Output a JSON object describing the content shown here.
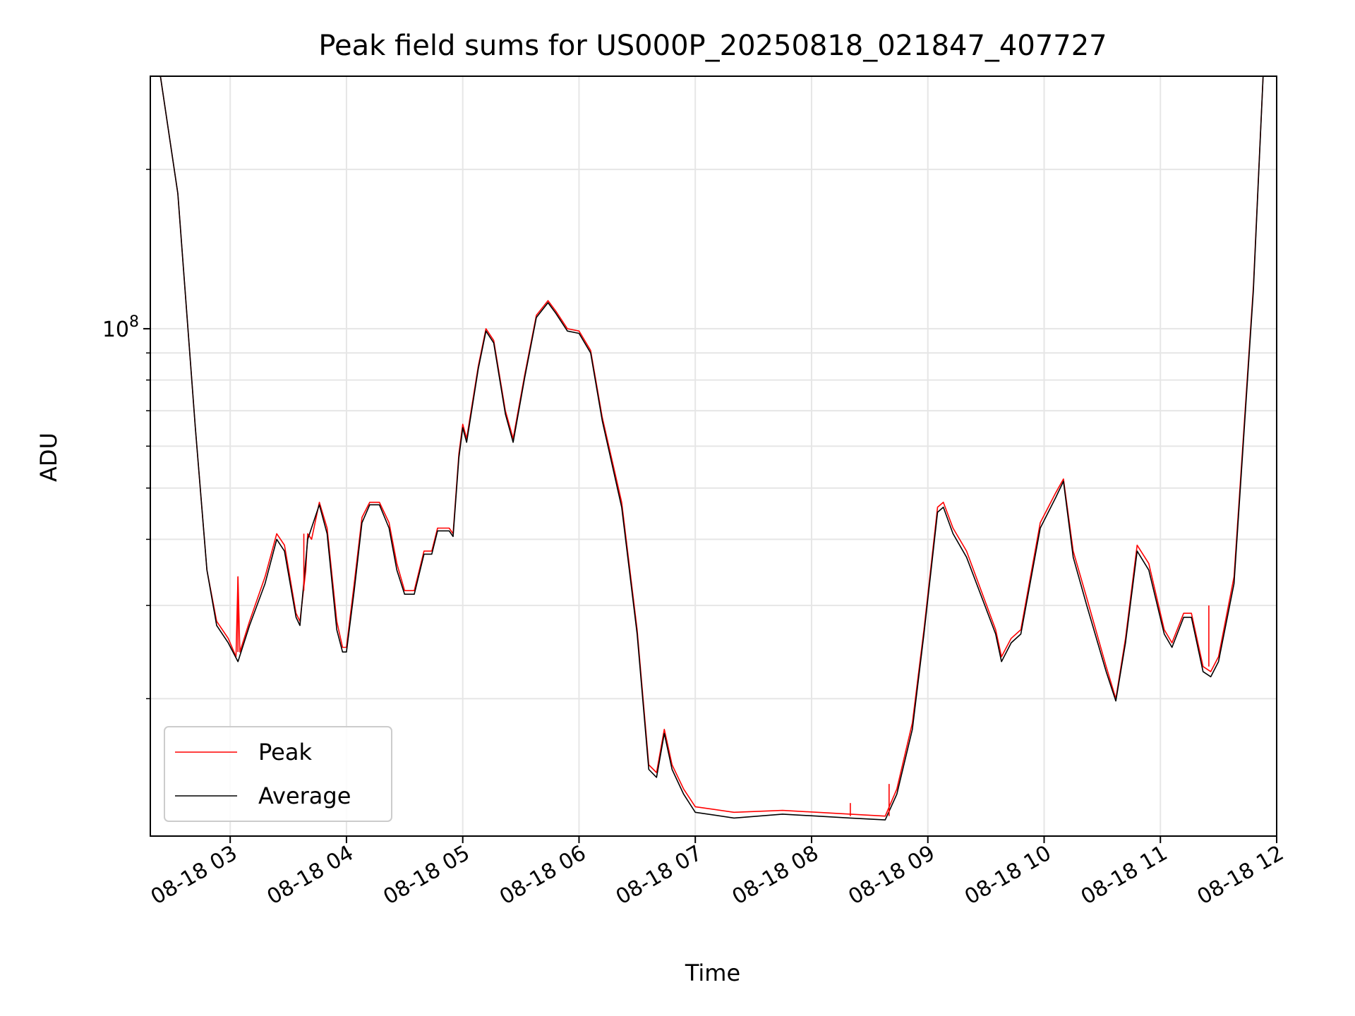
{
  "chart_data": {
    "type": "line",
    "title": "Peak field sums for US000P_20250818_021847_407727",
    "xlabel": "Time",
    "ylabel": "ADU",
    "x_scale": "time",
    "y_scale": "log",
    "xlim": [
      "2025-08-18 02:18:47",
      "2025-08-18 12:00"
    ],
    "ylim": [
      11000000,
      300000000
    ],
    "x_ticks": [
      {
        "value": "2025-08-18 03:00",
        "label": "08-18 03"
      },
      {
        "value": "2025-08-18 04:00",
        "label": "08-18 04"
      },
      {
        "value": "2025-08-18 05:00",
        "label": "08-18 05"
      },
      {
        "value": "2025-08-18 06:00",
        "label": "08-18 06"
      },
      {
        "value": "2025-08-18 07:00",
        "label": "08-18 07"
      },
      {
        "value": "2025-08-18 08:00",
        "label": "08-18 08"
      },
      {
        "value": "2025-08-18 09:00",
        "label": "08-18 09"
      },
      {
        "value": "2025-08-18 10:00",
        "label": "08-18 10"
      },
      {
        "value": "2025-08-18 11:00",
        "label": "08-18 11"
      },
      {
        "value": "2025-08-18 12:00",
        "label": "08-18 12"
      }
    ],
    "y_major_ticks": [
      {
        "value": 100000000,
        "base": "10",
        "exp": "8"
      }
    ],
    "y_minor_ticks": [
      20000000,
      30000000,
      40000000,
      50000000,
      60000000,
      70000000,
      80000000,
      90000000,
      200000000
    ],
    "grid": true,
    "legend_position": "lower-left",
    "colors": {
      "peak": "#ff0000",
      "average": "#000000"
    },
    "series": [
      {
        "name": "Peak",
        "color": "#ff0000",
        "points": [
          [
            "2025-08-18 02:19",
            300000000
          ],
          [
            "2025-08-18 02:24",
            300000000
          ],
          [
            "2025-08-18 02:33",
            180000000
          ],
          [
            "2025-08-18 02:42",
            65000000
          ],
          [
            "2025-08-18 02:48",
            35000000
          ],
          [
            "2025-08-18 02:53",
            28000000
          ],
          [
            "2025-08-18 02:59",
            26000000
          ],
          [
            "2025-08-18 03:03",
            24000000
          ],
          [
            "2025-08-18 03:04",
            34000000
          ],
          [
            "2025-08-18 03:05",
            24500000
          ],
          [
            "2025-08-18 03:10",
            28000000
          ],
          [
            "2025-08-18 03:18",
            34000000
          ],
          [
            "2025-08-18 03:24",
            41000000
          ],
          [
            "2025-08-18 03:28",
            39000000
          ],
          [
            "2025-08-18 03:34",
            29000000
          ],
          [
            "2025-08-18 03:36",
            28000000
          ],
          [
            "2025-08-18 03:39",
            35000000
          ],
          [
            "2025-08-18 03:40",
            41000000
          ],
          [
            "2025-08-18 03:42",
            40000000
          ],
          [
            "2025-08-18 03:46",
            47000000
          ],
          [
            "2025-08-18 03:50",
            42000000
          ],
          [
            "2025-08-18 03:55",
            28000000
          ],
          [
            "2025-08-18 03:58",
            25000000
          ],
          [
            "2025-08-18 04:00",
            25000000
          ],
          [
            "2025-08-18 04:04",
            33000000
          ],
          [
            "2025-08-18 04:08",
            44000000
          ],
          [
            "2025-08-18 04:12",
            47000000
          ],
          [
            "2025-08-18 04:17",
            47000000
          ],
          [
            "2025-08-18 04:22",
            43000000
          ],
          [
            "2025-08-18 04:26",
            36000000
          ],
          [
            "2025-08-18 04:30",
            32000000
          ],
          [
            "2025-08-18 04:35",
            32000000
          ],
          [
            "2025-08-18 04:40",
            38000000
          ],
          [
            "2025-08-18 04:44",
            38000000
          ],
          [
            "2025-08-18 04:47",
            42000000
          ],
          [
            "2025-08-18 04:53",
            42000000
          ],
          [
            "2025-08-18 04:55",
            41000000
          ],
          [
            "2025-08-18 04:58",
            58000000
          ],
          [
            "2025-08-18 05:00",
            66000000
          ],
          [
            "2025-08-18 05:02",
            62000000
          ],
          [
            "2025-08-18 05:08",
            85000000
          ],
          [
            "2025-08-18 05:12",
            100000000
          ],
          [
            "2025-08-18 05:16",
            95000000
          ],
          [
            "2025-08-18 05:22",
            70000000
          ],
          [
            "2025-08-18 05:26",
            62000000
          ],
          [
            "2025-08-18 05:32",
            82000000
          ],
          [
            "2025-08-18 05:38",
            106000000
          ],
          [
            "2025-08-18 05:44",
            113000000
          ],
          [
            "2025-08-18 05:48",
            108000000
          ],
          [
            "2025-08-18 05:54",
            100000000
          ],
          [
            "2025-08-18 06:00",
            99000000
          ],
          [
            "2025-08-18 06:06",
            91000000
          ],
          [
            "2025-08-18 06:12",
            68000000
          ],
          [
            "2025-08-18 06:22",
            47000000
          ],
          [
            "2025-08-18 06:30",
            27000000
          ],
          [
            "2025-08-18 06:36",
            15000000
          ],
          [
            "2025-08-18 06:40",
            14500000
          ],
          [
            "2025-08-18 06:44",
            17500000
          ],
          [
            "2025-08-18 06:48",
            15000000
          ],
          [
            "2025-08-18 06:54",
            13500000
          ],
          [
            "2025-08-18 07:00",
            12500000
          ],
          [
            "2025-08-18 07:20",
            12200000
          ],
          [
            "2025-08-18 07:45",
            12300000
          ],
          [
            "2025-08-18 08:20",
            12100000
          ],
          [
            "2025-08-18 08:38",
            12000000
          ],
          [
            "2025-08-18 08:44",
            13500000
          ],
          [
            "2025-08-18 08:52",
            18000000
          ],
          [
            "2025-08-18 08:58",
            27000000
          ],
          [
            "2025-08-18 09:05",
            46000000
          ],
          [
            "2025-08-18 09:08",
            47000000
          ],
          [
            "2025-08-18 09:13",
            42000000
          ],
          [
            "2025-08-18 09:20",
            38000000
          ],
          [
            "2025-08-18 09:35",
            27000000
          ],
          [
            "2025-08-18 09:38",
            24000000
          ],
          [
            "2025-08-18 09:43",
            26000000
          ],
          [
            "2025-08-18 09:48",
            27000000
          ],
          [
            "2025-08-18 09:58",
            43000000
          ],
          [
            "2025-08-18 10:06",
            49000000
          ],
          [
            "2025-08-18 10:10",
            52000000
          ],
          [
            "2025-08-18 10:15",
            38000000
          ],
          [
            "2025-08-18 10:22",
            31000000
          ],
          [
            "2025-08-18 10:32",
            23000000
          ],
          [
            "2025-08-18 10:37",
            20000000
          ],
          [
            "2025-08-18 10:42",
            26000000
          ],
          [
            "2025-08-18 10:48",
            39000000
          ],
          [
            "2025-08-18 10:54",
            36000000
          ],
          [
            "2025-08-18 11:02",
            27000000
          ],
          [
            "2025-08-18 11:06",
            25500000
          ],
          [
            "2025-08-18 11:12",
            29000000
          ],
          [
            "2025-08-18 11:16",
            29000000
          ],
          [
            "2025-08-18 11:22",
            23000000
          ],
          [
            "2025-08-18 11:26",
            22500000
          ],
          [
            "2025-08-18 11:30",
            24000000
          ],
          [
            "2025-08-18 11:38",
            34000000
          ],
          [
            "2025-08-18 11:48",
            120000000
          ],
          [
            "2025-08-18 11:53",
            300000000
          ]
        ]
      },
      {
        "name": "Average",
        "color": "#000000",
        "points": [
          [
            "2025-08-18 02:19",
            300000000
          ],
          [
            "2025-08-18 02:24",
            300000000
          ],
          [
            "2025-08-18 02:33",
            180000000
          ],
          [
            "2025-08-18 02:42",
            65000000
          ],
          [
            "2025-08-18 02:48",
            35000000
          ],
          [
            "2025-08-18 02:53",
            27500000
          ],
          [
            "2025-08-18 02:59",
            25500000
          ],
          [
            "2025-08-18 03:04",
            23500000
          ],
          [
            "2025-08-18 03:10",
            27500000
          ],
          [
            "2025-08-18 03:18",
            33000000
          ],
          [
            "2025-08-18 03:24",
            40000000
          ],
          [
            "2025-08-18 03:28",
            38000000
          ],
          [
            "2025-08-18 03:34",
            28500000
          ],
          [
            "2025-08-18 03:36",
            27500000
          ],
          [
            "2025-08-18 03:40",
            40000000
          ],
          [
            "2025-08-18 03:46",
            46500000
          ],
          [
            "2025-08-18 03:50",
            41000000
          ],
          [
            "2025-08-18 03:55",
            27000000
          ],
          [
            "2025-08-18 03:58",
            24500000
          ],
          [
            "2025-08-18 04:00",
            24500000
          ],
          [
            "2025-08-18 04:04",
            32000000
          ],
          [
            "2025-08-18 04:08",
            43000000
          ],
          [
            "2025-08-18 04:12",
            46500000
          ],
          [
            "2025-08-18 04:17",
            46500000
          ],
          [
            "2025-08-18 04:22",
            42000000
          ],
          [
            "2025-08-18 04:26",
            35000000
          ],
          [
            "2025-08-18 04:30",
            31500000
          ],
          [
            "2025-08-18 04:35",
            31500000
          ],
          [
            "2025-08-18 04:40",
            37500000
          ],
          [
            "2025-08-18 04:44",
            37500000
          ],
          [
            "2025-08-18 04:47",
            41500000
          ],
          [
            "2025-08-18 04:53",
            41500000
          ],
          [
            "2025-08-18 04:55",
            40500000
          ],
          [
            "2025-08-18 04:58",
            57000000
          ],
          [
            "2025-08-18 05:00",
            65000000
          ],
          [
            "2025-08-18 05:02",
            61000000
          ],
          [
            "2025-08-18 05:08",
            84000000
          ],
          [
            "2025-08-18 05:12",
            99000000
          ],
          [
            "2025-08-18 05:16",
            94000000
          ],
          [
            "2025-08-18 05:22",
            69000000
          ],
          [
            "2025-08-18 05:26",
            61000000
          ],
          [
            "2025-08-18 05:32",
            81000000
          ],
          [
            "2025-08-18 05:38",
            105000000
          ],
          [
            "2025-08-18 05:44",
            112000000
          ],
          [
            "2025-08-18 05:48",
            107000000
          ],
          [
            "2025-08-18 05:54",
            99000000
          ],
          [
            "2025-08-18 06:00",
            98000000
          ],
          [
            "2025-08-18 06:06",
            90000000
          ],
          [
            "2025-08-18 06:12",
            67000000
          ],
          [
            "2025-08-18 06:22",
            46000000
          ],
          [
            "2025-08-18 06:30",
            26500000
          ],
          [
            "2025-08-18 06:36",
            14700000
          ],
          [
            "2025-08-18 06:40",
            14200000
          ],
          [
            "2025-08-18 06:44",
            17200000
          ],
          [
            "2025-08-18 06:48",
            14700000
          ],
          [
            "2025-08-18 06:54",
            13200000
          ],
          [
            "2025-08-18 07:00",
            12200000
          ],
          [
            "2025-08-18 07:20",
            11900000
          ],
          [
            "2025-08-18 07:45",
            12100000
          ],
          [
            "2025-08-18 08:20",
            11900000
          ],
          [
            "2025-08-18 08:38",
            11800000
          ],
          [
            "2025-08-18 08:44",
            13200000
          ],
          [
            "2025-08-18 08:52",
            17500000
          ],
          [
            "2025-08-18 08:58",
            26500000
          ],
          [
            "2025-08-18 09:05",
            45000000
          ],
          [
            "2025-08-18 09:08",
            46000000
          ],
          [
            "2025-08-18 09:13",
            41000000
          ],
          [
            "2025-08-18 09:20",
            37000000
          ],
          [
            "2025-08-18 09:35",
            26500000
          ],
          [
            "2025-08-18 09:38",
            23500000
          ],
          [
            "2025-08-18 09:43",
            25500000
          ],
          [
            "2025-08-18 09:48",
            26500000
          ],
          [
            "2025-08-18 09:58",
            42000000
          ],
          [
            "2025-08-18 10:06",
            48000000
          ],
          [
            "2025-08-18 10:10",
            51500000
          ],
          [
            "2025-08-18 10:15",
            37000000
          ],
          [
            "2025-08-18 10:22",
            30000000
          ],
          [
            "2025-08-18 10:32",
            22500000
          ],
          [
            "2025-08-18 10:37",
            19800000
          ],
          [
            "2025-08-18 10:42",
            25500000
          ],
          [
            "2025-08-18 10:48",
            38000000
          ],
          [
            "2025-08-18 10:54",
            35000000
          ],
          [
            "2025-08-18 11:02",
            26500000
          ],
          [
            "2025-08-18 11:06",
            25000000
          ],
          [
            "2025-08-18 11:12",
            28500000
          ],
          [
            "2025-08-18 11:16",
            28500000
          ],
          [
            "2025-08-18 11:22",
            22500000
          ],
          [
            "2025-08-18 11:26",
            22000000
          ],
          [
            "2025-08-18 11:30",
            23500000
          ],
          [
            "2025-08-18 11:38",
            33000000
          ],
          [
            "2025-08-18 11:48",
            118000000
          ],
          [
            "2025-08-18 11:53",
            300000000
          ]
        ]
      }
    ],
    "spikes": {
      "color": "#ff0000",
      "items": [
        {
          "x": "2025-08-18 03:04",
          "from": 24500000,
          "to": 34000000
        },
        {
          "x": "2025-08-18 03:38",
          "from": 32000000,
          "to": 41000000
        },
        {
          "x": "2025-08-18 08:40",
          "from": 12000000,
          "to": 13800000
        },
        {
          "x": "2025-08-18 08:20",
          "from": 12000000,
          "to": 12700000
        },
        {
          "x": "2025-08-18 11:25",
          "from": 23000000,
          "to": 30000000
        }
      ]
    }
  }
}
